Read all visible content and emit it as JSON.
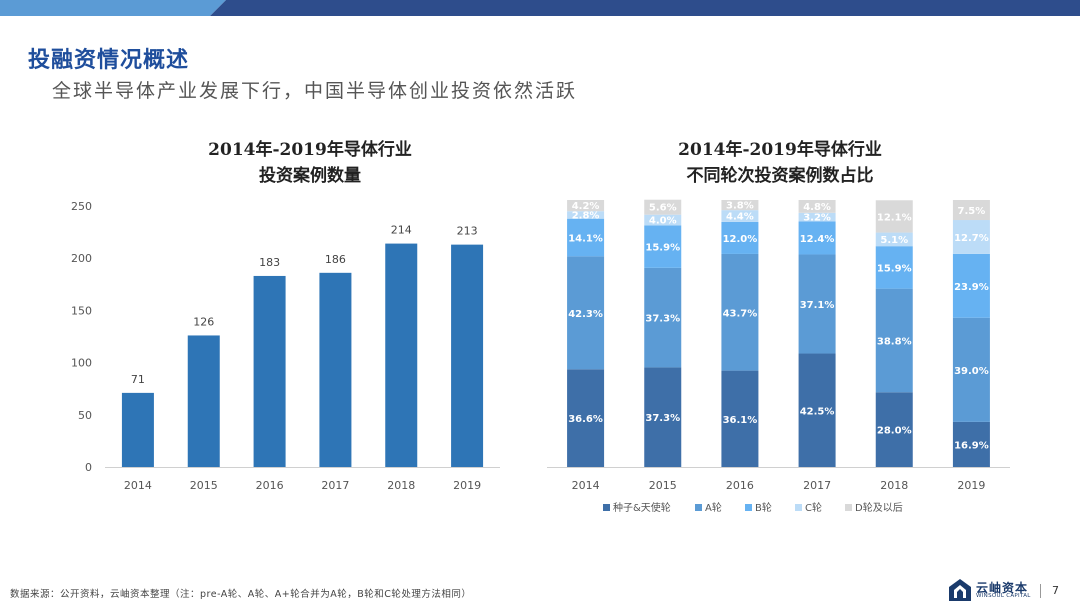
{
  "header": {
    "title": "投融资情况概述",
    "subtitle": "全球半导体产业发展下行，中国半导体创业投资依然活跃",
    "bar_colors": [
      "#5b9bd5",
      "#2e4d8c"
    ]
  },
  "left_chart": {
    "title_line1": "2014年-2019年导体行业",
    "title_line2": "投资案例数量"
  },
  "right_chart": {
    "title_line1": "2014年-2019年导体行业",
    "title_line2": "不同轮次投资案例数占比"
  },
  "chart_data": [
    {
      "type": "bar",
      "title": "2014年-2019年导体行业投资案例数量",
      "categories": [
        "2014",
        "2015",
        "2016",
        "2017",
        "2018",
        "2019"
      ],
      "values": [
        71,
        126,
        183,
        186,
        214,
        213
      ],
      "ylim": [
        0,
        250
      ],
      "yticks": [
        0,
        50,
        100,
        150,
        200,
        250
      ],
      "grid": false,
      "color": "#2e75b6"
    },
    {
      "type": "bar",
      "stacked": true,
      "title": "2014年-2019年导体行业不同轮次投资案例数占比",
      "categories": [
        "2014",
        "2015",
        "2016",
        "2017",
        "2018",
        "2019"
      ],
      "series": [
        {
          "name": "种子&天使轮",
          "color": "#3e6fa8",
          "values": [
            36.6,
            37.3,
            36.1,
            42.5,
            28.0,
            16.9
          ],
          "labels": [
            "36.6%",
            "37.3%",
            "36.1%",
            "42.5%",
            "28.0%",
            "16.9%"
          ]
        },
        {
          "name": "A轮",
          "color": "#5b9bd5",
          "values": [
            42.3,
            37.3,
            43.7,
            37.1,
            38.8,
            39.0
          ],
          "labels": [
            "42.3%",
            "37.3%",
            "43.7%",
            "37.1%",
            "38.8%",
            "39.0%"
          ]
        },
        {
          "name": "B轮",
          "color": "#66b2f2",
          "values": [
            14.1,
            15.9,
            12.0,
            12.4,
            15.9,
            23.9
          ],
          "labels": [
            "14.1%",
            "15.9%",
            "12.0%",
            "12.4%",
            "15.9%",
            "23.9%"
          ]
        },
        {
          "name": "C轮",
          "color": "#bcdcf7",
          "values": [
            2.8,
            4.0,
            4.4,
            3.2,
            5.1,
            12.7
          ],
          "labels": [
            "2.8%",
            "4.0%",
            "4.4%",
            "3.2%",
            "5.1%",
            "12.7%"
          ]
        },
        {
          "name": "D轮及以后",
          "color": "#d9d9d9",
          "values": [
            4.2,
            5.6,
            3.8,
            4.8,
            12.1,
            7.5
          ],
          "labels": [
            "4.2%",
            "5.6%",
            "3.8%",
            "4.8%",
            "12.1%",
            "7.5%"
          ]
        }
      ],
      "ylim": [
        0,
        100
      ],
      "legend": "bottom",
      "grid": false
    }
  ],
  "footer": {
    "source": "数据来源：公开资料，云岫资本整理（注：pre-A轮、A轮、A+轮合并为A轮，B轮和C轮处理方法相同）",
    "logo_cn": "云岫资本",
    "logo_en": "WINSOUL CAPITAL",
    "page_number": "7"
  }
}
